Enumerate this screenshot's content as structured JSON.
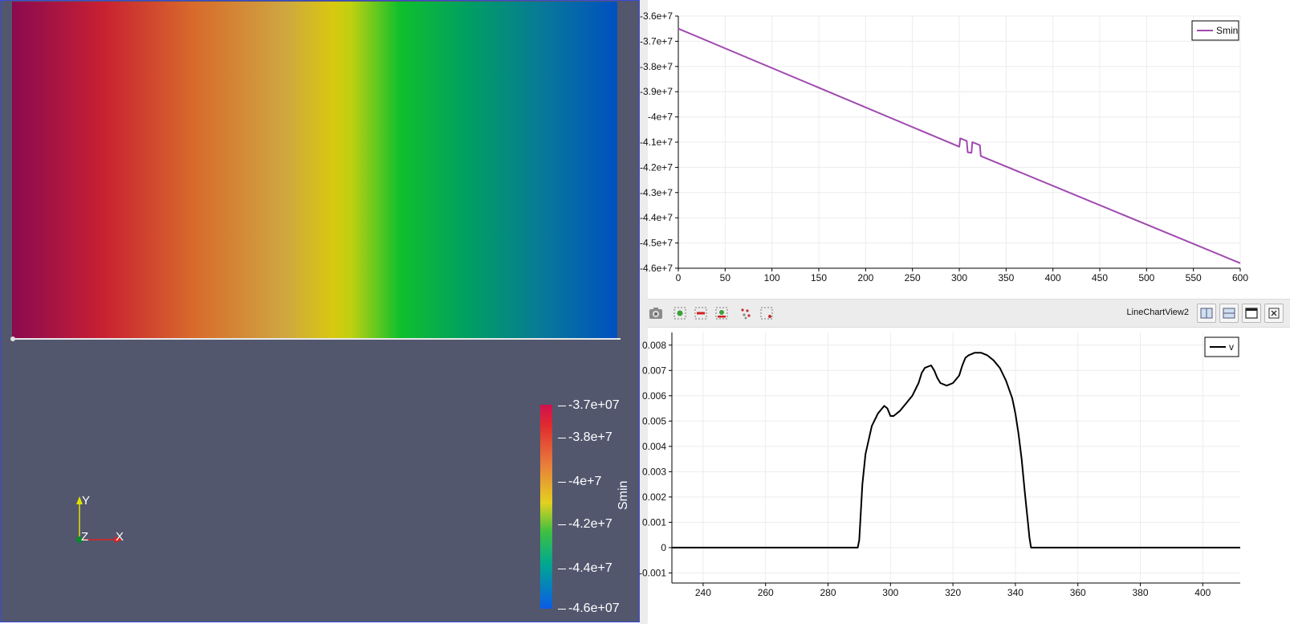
{
  "render_view": {
    "colorbar": {
      "title": "Smin",
      "labels": [
        "-3.7e+07",
        "-3.8e+7",
        "-4e+7",
        "-4.2e+7",
        "-4.4e+7",
        "-4.6e+07"
      ],
      "range": [
        -46000000,
        -37000000
      ],
      "label_values": [
        -37000000,
        -38000000,
        -40000000,
        -42000000,
        -44000000,
        -46000000
      ]
    },
    "orientation_axes": {
      "y_label": "Y",
      "x_label": "X",
      "z_label": "Z"
    },
    "colors": {
      "background": "#52576e",
      "frame": "#3b4bd8"
    }
  },
  "toolbar": {
    "view_name": "LineChartView2",
    "buttons": [
      "camera-icon",
      "zoom-to-box-icon",
      "remove-icon",
      "add-point-icon",
      "scatter-select-icon",
      "select-box-icon"
    ],
    "layout_buttons": [
      "split-horizontal-icon",
      "split-vertical-icon",
      "maximize-icon",
      "close-icon"
    ]
  },
  "chart_data": [
    {
      "type": "line",
      "xlim": [
        0,
        600
      ],
      "ylim": [
        -46000000,
        -36000000
      ],
      "x_ticks": [
        0,
        50,
        100,
        150,
        200,
        250,
        300,
        350,
        400,
        450,
        500,
        550,
        600
      ],
      "y_ticks": [
        -36000000,
        -37000000,
        -38000000,
        -39000000,
        -40000000,
        -41000000,
        -42000000,
        -43000000,
        -44000000,
        -45000000,
        -46000000
      ],
      "y_tick_labels": [
        "-3.6e+7",
        "-3.7e+7",
        "-3.8e+7",
        "-3.9e+7",
        "-4e+7",
        "-4.1e+7",
        "-4.2e+7",
        "-4.3e+7",
        "-4.4e+7",
        "-4.5e+7",
        "-4.6e+7"
      ],
      "grid": true,
      "legend_position": "top-right",
      "series": [
        {
          "name": "Smin",
          "color": "#a04ab0",
          "x": [
            0,
            300,
            301,
            308,
            309,
            313,
            314,
            322,
            323,
            600
          ],
          "y": [
            -36500000,
            -41180000,
            -40850000,
            -40950000,
            -41400000,
            -41420000,
            -41000000,
            -41120000,
            -41550000,
            -45800000
          ]
        }
      ]
    },
    {
      "type": "line",
      "xlim": [
        230,
        412
      ],
      "ylim": [
        -0.0014,
        0.0085
      ],
      "x_ticks": [
        240,
        260,
        280,
        300,
        320,
        340,
        360,
        380,
        400
      ],
      "y_ticks": [
        -0.001,
        0,
        0.001,
        0.002,
        0.003,
        0.004,
        0.005,
        0.006,
        0.007,
        0.008
      ],
      "y_tick_labels": [
        "-0.001",
        "0",
        "0.001",
        "0.002",
        "0.003",
        "0.004",
        "0.005",
        "0.006",
        "0.007",
        "0.008"
      ],
      "grid": true,
      "legend_position": "top-right",
      "series": [
        {
          "name": "v",
          "color": "#000000",
          "x": [
            230,
            289.5,
            290,
            291,
            292,
            294,
            296,
            298,
            299,
            300,
            301,
            303,
            305,
            307,
            309,
            310,
            311,
            313,
            314,
            315,
            316,
            318,
            320,
            322,
            323,
            324,
            325,
            327,
            329,
            331,
            333,
            335,
            337,
            339,
            340,
            341,
            342,
            343,
            344,
            344.5,
            345,
            412
          ],
          "y": [
            0,
            0,
            0.0003,
            0.0025,
            0.0037,
            0.0048,
            0.0053,
            0.0056,
            0.0055,
            0.0052,
            0.0052,
            0.0054,
            0.0057,
            0.006,
            0.0065,
            0.0069,
            0.0071,
            0.0072,
            0.007,
            0.0067,
            0.0065,
            0.0064,
            0.0065,
            0.0068,
            0.0072,
            0.0075,
            0.0076,
            0.0077,
            0.0077,
            0.0076,
            0.0074,
            0.0071,
            0.0066,
            0.0059,
            0.0053,
            0.0045,
            0.0035,
            0.0022,
            0.001,
            0.0004,
            0,
            0
          ]
        }
      ]
    }
  ]
}
